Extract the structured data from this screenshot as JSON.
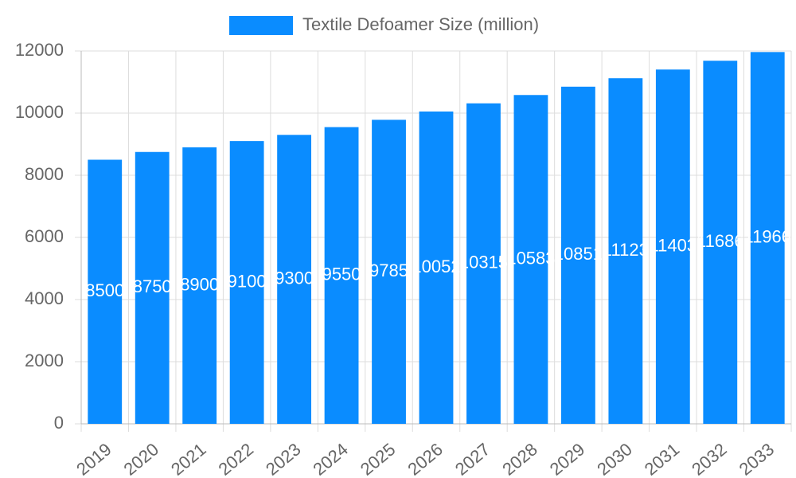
{
  "chart_data": {
    "type": "bar",
    "categories": [
      "2019",
      "2020",
      "2021",
      "2022",
      "2023",
      "2024",
      "2025",
      "2026",
      "2027",
      "2028",
      "2029",
      "2030",
      "2031",
      "2032",
      "2033"
    ],
    "series": [
      {
        "name": "Textile Defoamer Size (million)",
        "color": "#0a8cff",
        "values": [
          8500,
          8750,
          8900,
          9100,
          9300,
          9550,
          9785,
          10052,
          10315,
          10583,
          10851,
          11123,
          11403,
          11686,
          11966
        ]
      }
    ],
    "ylim": [
      0,
      12000
    ],
    "yticks": [
      0,
      2000,
      4000,
      6000,
      8000,
      10000,
      12000
    ],
    "grid": true,
    "legend": "top"
  }
}
